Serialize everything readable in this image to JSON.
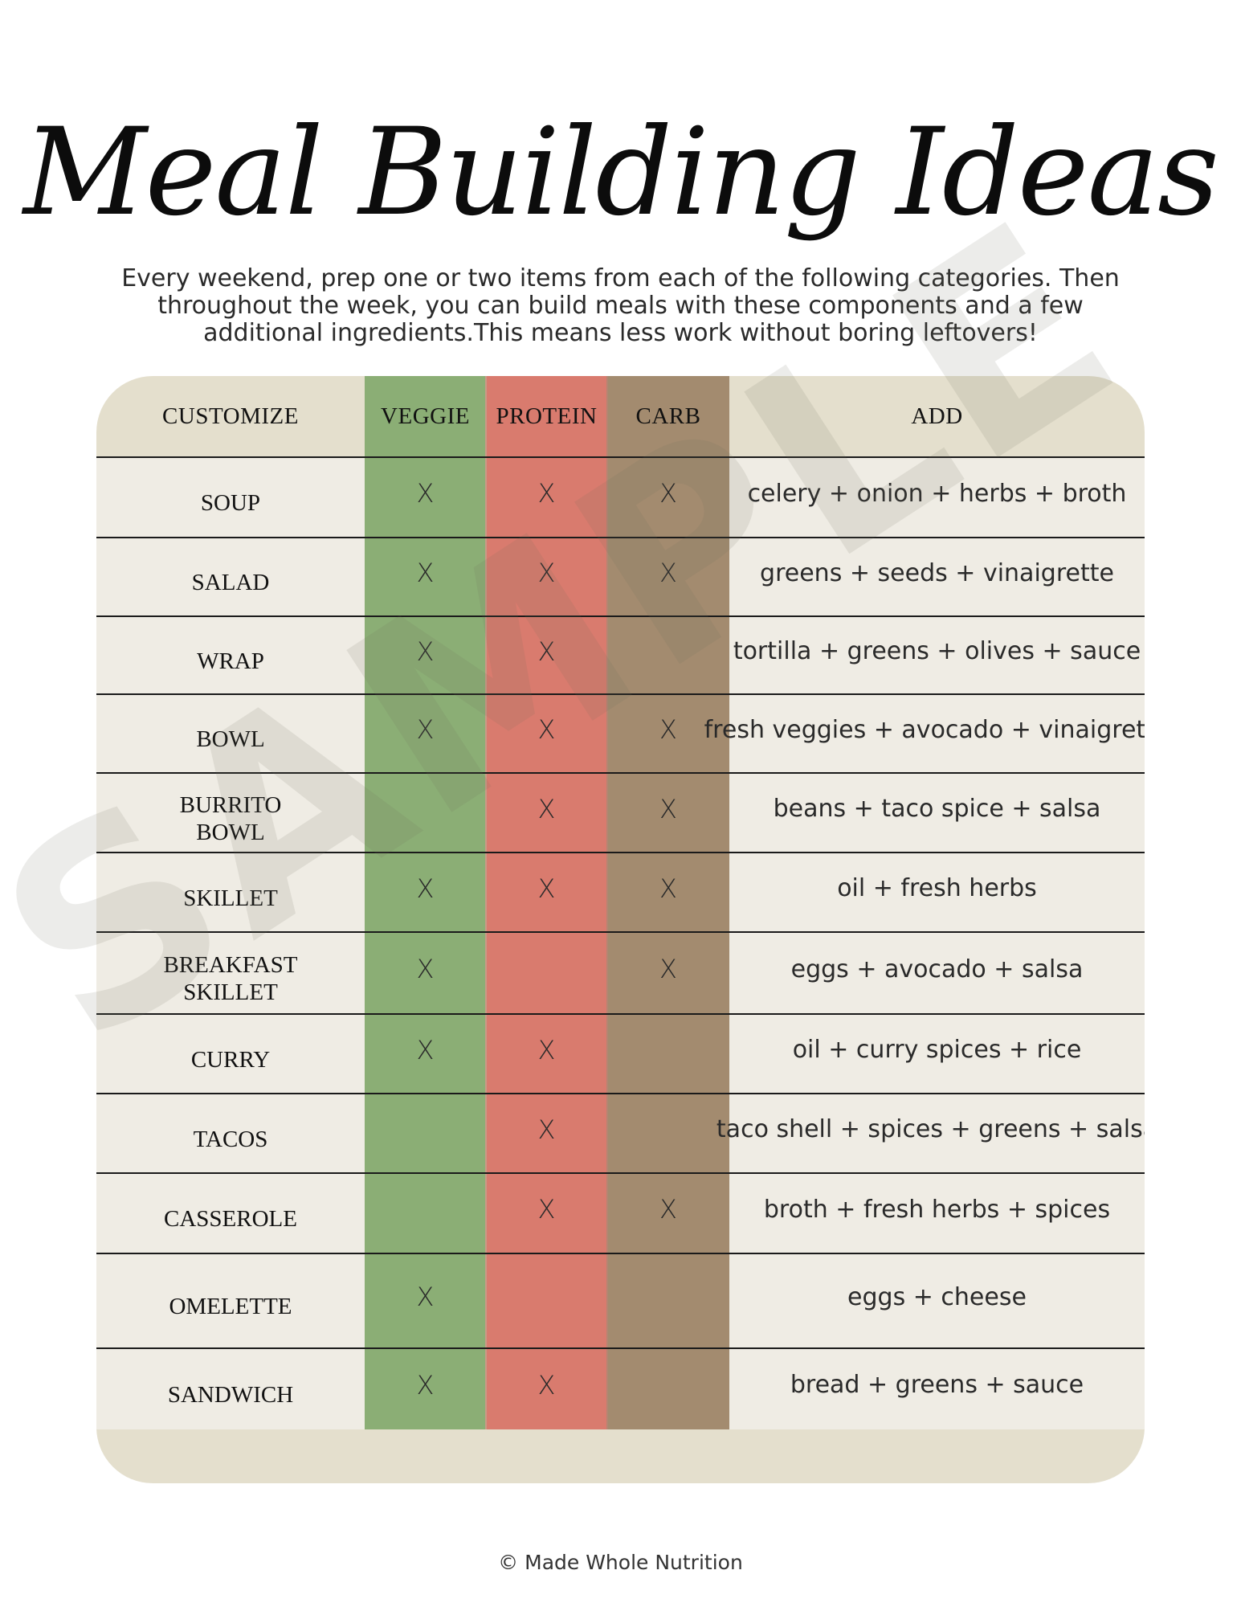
{
  "title": "Meal Building Ideas",
  "intro": "Every weekend, prep one or two items from each of the following categories. Then throughout the week, you can build meals with these components and a few additional ingredients.This means less work without boring leftovers!",
  "colors": {
    "veggie": "#8bae75",
    "protein": "#d97b6e",
    "carb": "#a38b6f",
    "card": "#e4dfcd",
    "rows": "#efece4"
  },
  "table": {
    "headers": [
      "CUSTOMIZE",
      "VEGGIE",
      "PROTEIN",
      "CARB",
      "ADD"
    ],
    "mark": "X",
    "rows": [
      {
        "name": "SOUP",
        "veggie": true,
        "protein": true,
        "carb": true,
        "add": "celery + onion + herbs + broth"
      },
      {
        "name": "SALAD",
        "veggie": true,
        "protein": true,
        "carb": true,
        "add": "greens + seeds + vinaigrette"
      },
      {
        "name": "WRAP",
        "veggie": true,
        "protein": true,
        "carb": false,
        "add": "tortilla + greens + olives + sauce"
      },
      {
        "name": "BOWL",
        "veggie": true,
        "protein": true,
        "carb": true,
        "add": "fresh veggies + avocado + vinaigrette"
      },
      {
        "name": "BURRITO\nBOWL",
        "veggie": false,
        "protein": true,
        "carb": true,
        "add": "beans + taco spice + salsa"
      },
      {
        "name": "SKILLET",
        "veggie": true,
        "protein": true,
        "carb": true,
        "add": "oil + fresh herbs"
      },
      {
        "name": "BREAKFAST\nSKILLET",
        "veggie": true,
        "protein": false,
        "carb": true,
        "add": "eggs + avocado + salsa"
      },
      {
        "name": "CURRY",
        "veggie": true,
        "protein": true,
        "carb": false,
        "add": "oil + curry spices + rice"
      },
      {
        "name": "TACOS",
        "veggie": false,
        "protein": true,
        "carb": false,
        "add": "taco shell + spices + greens + salsa"
      },
      {
        "name": "CASSEROLE",
        "veggie": false,
        "protein": true,
        "carb": true,
        "add": "broth + fresh herbs + spices"
      },
      {
        "name": "OMELETTE",
        "veggie": true,
        "protein": false,
        "carb": false,
        "add": "eggs + cheese"
      },
      {
        "name": "SANDWICH",
        "veggie": true,
        "protein": true,
        "carb": false,
        "add": "bread + greens + sauce"
      }
    ]
  },
  "watermark": "SAMPLE",
  "footer": "© Made Whole Nutrition"
}
